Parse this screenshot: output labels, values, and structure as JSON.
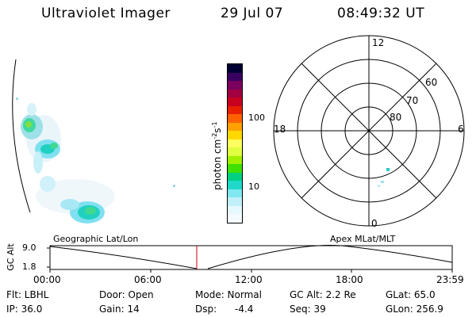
{
  "header": {
    "instrument": "Ultraviolet Imager",
    "date": "29 Jul 07",
    "time": "08:49:32 UT"
  },
  "colorbar": {
    "label": "photon cm",
    "exp1": "-2",
    "mid": "s",
    "exp2": "-1",
    "ticks": [
      "100",
      "10"
    ],
    "scale": "log",
    "colors": [
      "#000033",
      "#3a0060",
      "#7a0060",
      "#a00040",
      "#c80020",
      "#e82000",
      "#ff6000",
      "#ffa000",
      "#ffd800",
      "#ffff60",
      "#e0ff40",
      "#a0f000",
      "#40e000",
      "#00d080",
      "#20d8c8",
      "#80e8f0",
      "#c0f0f8",
      "#e8f8ff",
      "#f4fbff"
    ]
  },
  "polar": {
    "mlt_labels": [
      "12",
      "18",
      "6",
      "0"
    ],
    "mlat_labels": [
      "60",
      "70",
      "80"
    ]
  },
  "timeline": {
    "ylabel": "GC Alt",
    "yticks": [
      "9.0",
      "1.8"
    ],
    "left_title": "Geographic Lat/Lon",
    "right_title": "Apex MLat/MLT",
    "xticks": [
      "00:00",
      "06:00",
      "12:00",
      "18:00",
      "23:59"
    ],
    "marker_color": "#cc0000"
  },
  "status": {
    "flt": "Flt: LBHL",
    "door": "Door: Open",
    "mode": "Mode: Normal",
    "gcalt": "GC Alt: 2.2 Re",
    "glat": "GLat: 65.0",
    "ip": "IP: 36.0",
    "gain": "Gain: 14",
    "dsp_label": "Dsp:",
    "dsp_value": "-4.4",
    "seq": "Seq: 39",
    "glon": "GLon: 256.9"
  }
}
